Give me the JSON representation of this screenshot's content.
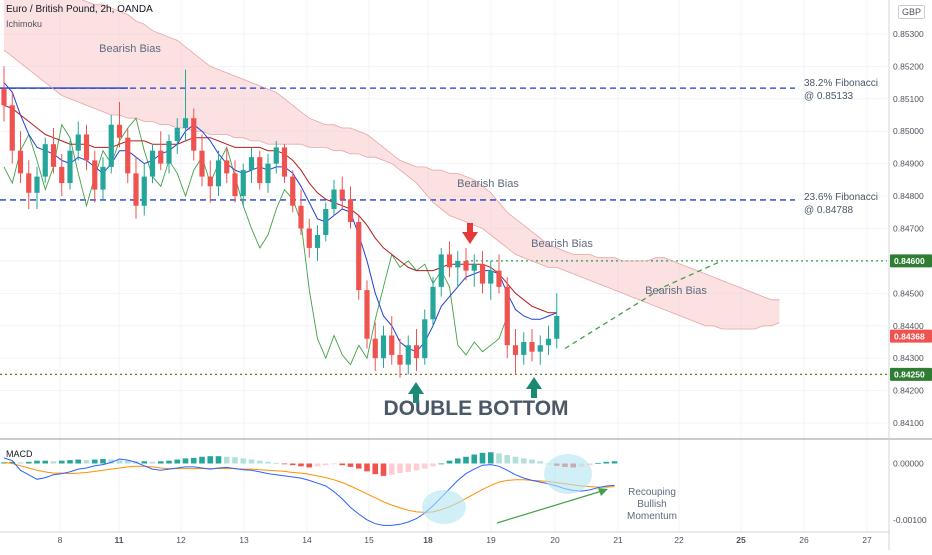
{
  "header": {
    "symbol_title": "Euro / British Pound, 2h, OANDA",
    "indicator_name": "Ichimoku"
  },
  "currency_label": "GBP",
  "chart_data": [
    {
      "type": "candlestick",
      "title": "Euro / British Pound, 2h, OANDA",
      "ylim": [
        0.8406,
        0.8538
      ],
      "y_ticks": [
        "0.85300",
        "0.85200",
        "0.85100",
        "0.85000",
        "0.84900",
        "0.84800",
        "0.84700",
        "0.84600",
        "0.84500",
        "0.84400",
        "0.84300",
        "0.84200",
        "0.84100"
      ],
      "x_ticks": [
        "8",
        "11",
        "12",
        "13",
        "14",
        "15",
        "18",
        "19",
        "20",
        "21",
        "22",
        "25",
        "26",
        "27"
      ],
      "price_tags": [
        {
          "label": "0.84600",
          "value": 0.846,
          "color": "#2e7d32"
        },
        {
          "label": "0.84368",
          "value": 0.84368,
          "color": "#ef5350"
        },
        {
          "label": "0.84250",
          "value": 0.8425,
          "color": "#2e7d32"
        }
      ],
      "levels": [
        {
          "name": "38.2% Fibonacci",
          "value_label": "@ 0.85133",
          "value": 0.85133,
          "style": "dashed",
          "color": "#1e3fc7"
        },
        {
          "name": "23.6% Fibonacci",
          "value_label": "@ 0.84788",
          "value": 0.84788,
          "style": "dashed",
          "color": "#1e3fc7"
        },
        {
          "name": "",
          "value_label": "",
          "value": 0.846,
          "style": "dotted",
          "color": "#2e9e3e"
        },
        {
          "name": "",
          "value_label": "",
          "value": 0.8425,
          "style": "dotted",
          "color": "#6f7c1a"
        }
      ],
      "annotations": [
        "Bearish Bias",
        "Bearish Bias",
        "Bearish Bias",
        "Bearish Bias",
        "DOUBLE BOTTOM"
      ],
      "candles": [
        [
          0.8513,
          0.852,
          0.8503,
          0.8508
        ],
        [
          0.8508,
          0.8512,
          0.849,
          0.8494
        ],
        [
          0.8494,
          0.85,
          0.8484,
          0.8487
        ],
        [
          0.8487,
          0.8491,
          0.8476,
          0.8481
        ],
        [
          0.8481,
          0.8489,
          0.8476,
          0.8486
        ],
        [
          0.8486,
          0.8498,
          0.8484,
          0.8496
        ],
        [
          0.8496,
          0.8501,
          0.8487,
          0.8489
        ],
        [
          0.8489,
          0.8493,
          0.848,
          0.8484
        ],
        [
          0.8484,
          0.8497,
          0.8482,
          0.8494
        ],
        [
          0.8494,
          0.8503,
          0.8491,
          0.8499
        ],
        [
          0.8499,
          0.8502,
          0.8488,
          0.8491
        ],
        [
          0.8491,
          0.8494,
          0.8478,
          0.8482
        ],
        [
          0.8482,
          0.8492,
          0.8479,
          0.8489
        ],
        [
          0.8489,
          0.8505,
          0.8487,
          0.8502
        ],
        [
          0.8502,
          0.8509,
          0.8495,
          0.8498
        ],
        [
          0.8498,
          0.8501,
          0.8484,
          0.8487
        ],
        [
          0.8487,
          0.8492,
          0.8473,
          0.8477
        ],
        [
          0.8477,
          0.849,
          0.8474,
          0.8486
        ],
        [
          0.8486,
          0.8496,
          0.8484,
          0.8494
        ],
        [
          0.8494,
          0.85,
          0.8488,
          0.849
        ],
        [
          0.849,
          0.8499,
          0.8487,
          0.8497
        ],
        [
          0.8497,
          0.8504,
          0.8493,
          0.8501
        ],
        [
          0.8501,
          0.8519,
          0.8497,
          0.8504
        ],
        [
          0.8504,
          0.8507,
          0.8491,
          0.8494
        ],
        [
          0.8494,
          0.8499,
          0.8483,
          0.8486
        ],
        [
          0.8486,
          0.8491,
          0.8478,
          0.8483
        ],
        [
          0.8483,
          0.8494,
          0.848,
          0.8491
        ],
        [
          0.8491,
          0.8495,
          0.8484,
          0.8487
        ],
        [
          0.8487,
          0.8491,
          0.8478,
          0.848
        ],
        [
          0.848,
          0.849,
          0.8477,
          0.8488
        ],
        [
          0.8488,
          0.8495,
          0.8484,
          0.8492
        ],
        [
          0.8492,
          0.8494,
          0.8482,
          0.8484
        ],
        [
          0.8484,
          0.8493,
          0.8481,
          0.849
        ],
        [
          0.849,
          0.8497,
          0.8487,
          0.8495
        ],
        [
          0.8495,
          0.8496,
          0.8484,
          0.8486
        ],
        [
          0.8486,
          0.8488,
          0.8475,
          0.8477
        ],
        [
          0.8477,
          0.8482,
          0.8468,
          0.847
        ],
        [
          0.847,
          0.8473,
          0.8461,
          0.8464
        ],
        [
          0.8464,
          0.8471,
          0.846,
          0.8468
        ],
        [
          0.8468,
          0.8478,
          0.8466,
          0.8476
        ],
        [
          0.8476,
          0.8485,
          0.8474,
          0.8482
        ],
        [
          0.8482,
          0.8486,
          0.8476,
          0.8479
        ],
        [
          0.8479,
          0.8483,
          0.847,
          0.8472
        ],
        [
          0.8472,
          0.8474,
          0.8448,
          0.8451
        ],
        [
          0.8451,
          0.8454,
          0.8433,
          0.8436
        ],
        [
          0.8436,
          0.8441,
          0.8426,
          0.843
        ],
        [
          0.843,
          0.844,
          0.8427,
          0.8437
        ],
        [
          0.8437,
          0.8443,
          0.8428,
          0.8431
        ],
        [
          0.8431,
          0.8436,
          0.8424,
          0.8428
        ],
        [
          0.8428,
          0.8437,
          0.8425,
          0.8434
        ],
        [
          0.8434,
          0.8439,
          0.8426,
          0.843
        ],
        [
          0.843,
          0.8445,
          0.8428,
          0.8442
        ],
        [
          0.8442,
          0.8455,
          0.844,
          0.8452
        ],
        [
          0.8452,
          0.8464,
          0.8449,
          0.8462
        ],
        [
          0.8462,
          0.8466,
          0.8455,
          0.8458
        ],
        [
          0.8458,
          0.8463,
          0.8452,
          0.846
        ],
        [
          0.846,
          0.8464,
          0.8454,
          0.8457
        ],
        [
          0.8457,
          0.8462,
          0.8452,
          0.8459
        ],
        [
          0.8459,
          0.8463,
          0.845,
          0.8453
        ],
        [
          0.8453,
          0.846,
          0.8448,
          0.8457
        ],
        [
          0.8457,
          0.8462,
          0.845,
          0.8452
        ],
        [
          0.8452,
          0.8455,
          0.843,
          0.8434
        ],
        [
          0.8434,
          0.8439,
          0.8425,
          0.8431
        ],
        [
          0.8431,
          0.8438,
          0.8428,
          0.8435
        ],
        [
          0.8435,
          0.8439,
          0.8429,
          0.8432
        ],
        [
          0.8432,
          0.8437,
          0.8428,
          0.8434
        ],
        [
          0.8434,
          0.844,
          0.8431,
          0.8436
        ],
        [
          0.8436,
          0.845,
          0.8433,
          0.8443
        ]
      ],
      "indicators": {
        "tenkan": [
          0.8515,
          0.8512,
          0.8505,
          0.8499,
          0.8495,
          0.8494,
          0.8493,
          0.8491,
          0.849,
          0.8492,
          0.8491,
          0.8489,
          0.8487,
          0.849,
          0.8494,
          0.8494,
          0.8492,
          0.849,
          0.8491,
          0.8493,
          0.8494,
          0.8496,
          0.85,
          0.8502,
          0.85,
          0.8497,
          0.8493,
          0.849,
          0.8488,
          0.8487,
          0.8488,
          0.8489,
          0.8488,
          0.8489,
          0.8489,
          0.8487,
          0.8483,
          0.8478,
          0.8473,
          0.8472,
          0.8474,
          0.8476,
          0.8475,
          0.8468,
          0.846,
          0.845,
          0.8443,
          0.844,
          0.8435,
          0.8433,
          0.8432,
          0.8435,
          0.844,
          0.8446,
          0.8449,
          0.8452,
          0.8455,
          0.8456,
          0.8457,
          0.8457,
          0.8456,
          0.845,
          0.8445,
          0.8443,
          0.8442,
          0.8442,
          0.8443,
          0.8444
        ],
        "kijun": [
          0.8508,
          0.8507,
          0.8505,
          0.8503,
          0.8501,
          0.8499,
          0.8498,
          0.8497,
          0.8496,
          0.8496,
          0.8496,
          0.8495,
          0.8495,
          0.8495,
          0.8496,
          0.8497,
          0.8497,
          0.8497,
          0.8496,
          0.8496,
          0.8496,
          0.8496,
          0.8497,
          0.8498,
          0.8498,
          0.8498,
          0.8497,
          0.8496,
          0.8495,
          0.8495,
          0.8495,
          0.8495,
          0.8494,
          0.8494,
          0.8493,
          0.8491,
          0.8488,
          0.8484,
          0.8481,
          0.8479,
          0.8478,
          0.8477,
          0.8476,
          0.8474,
          0.8471,
          0.8467,
          0.8464,
          0.8462,
          0.846,
          0.8458,
          0.8457,
          0.8457,
          0.8457,
          0.8458,
          0.8459,
          0.8459,
          0.8459,
          0.8459,
          0.8459,
          0.8458,
          0.8456,
          0.8453,
          0.845,
          0.8448,
          0.8446,
          0.8445,
          0.8444,
          0.8444
        ],
        "chikou": [
          0.8489,
          0.8484,
          0.8494,
          0.8499,
          0.8491,
          0.8482,
          0.8489,
          0.8502,
          0.8498,
          0.8487,
          0.8477,
          0.8486,
          0.8494,
          0.849,
          0.8497,
          0.8501,
          0.8504,
          0.8494,
          0.8486,
          0.8483,
          0.8491,
          0.8487,
          0.848,
          0.8488,
          0.8492,
          0.8484,
          0.849,
          0.8495,
          0.8486,
          0.8477,
          0.847,
          0.8464,
          0.8468,
          0.8476,
          0.8482,
          0.8479,
          0.8472,
          0.8451,
          0.8436,
          0.843,
          0.8437,
          0.8431,
          0.8428,
          0.8434,
          0.843,
          0.8442,
          0.8452,
          0.8462,
          0.8458,
          0.846,
          0.8457,
          0.8459,
          0.8453,
          0.8457,
          0.8452,
          0.8434,
          0.8431,
          0.8435,
          0.8432,
          0.8434,
          0.8436,
          0.8443
        ],
        "cloud_top": [
          0.8545,
          0.8545,
          0.8545,
          0.8544,
          0.8544,
          0.8543,
          0.8543,
          0.8542,
          0.8542,
          0.8541,
          0.854,
          0.8539,
          0.8539,
          0.8538,
          0.8537,
          0.8536,
          0.8534,
          0.8533,
          0.8531,
          0.853,
          0.8529,
          0.8528,
          0.8526,
          0.8524,
          0.8522,
          0.852,
          0.8519,
          0.8518,
          0.8517,
          0.8516,
          0.8515,
          0.8514,
          0.8513,
          0.8512,
          0.851,
          0.8508,
          0.8506,
          0.8504,
          0.8503,
          0.8502,
          0.8502,
          0.8501,
          0.8501,
          0.85,
          0.8499,
          0.8497,
          0.8495,
          0.8493,
          0.8491,
          0.849,
          0.8489,
          0.8489,
          0.8488,
          0.8488,
          0.8487,
          0.8487,
          0.8486,
          0.8485,
          0.8483,
          0.8481,
          0.8478,
          0.8475,
          0.8473,
          0.8471,
          0.8469,
          0.8467,
          0.8465,
          0.8464,
          0.8463,
          0.8462,
          0.8462,
          0.8462,
          0.8461,
          0.8461,
          0.8461,
          0.846,
          0.846,
          0.846,
          0.846,
          0.8461,
          0.8461,
          0.846,
          0.8459,
          0.8458,
          0.8457,
          0.8456,
          0.8455,
          0.8454,
          0.8453,
          0.8452,
          0.8451,
          0.845,
          0.8449,
          0.8448,
          0.8448
        ],
        "cloud_bottom": [
          0.8525,
          0.8523,
          0.8521,
          0.8519,
          0.8517,
          0.8515,
          0.8513,
          0.8511,
          0.851,
          0.8509,
          0.8508,
          0.8507,
          0.8506,
          0.8505,
          0.8505,
          0.8504,
          0.8504,
          0.8503,
          0.8503,
          0.8502,
          0.8502,
          0.8501,
          0.8501,
          0.85,
          0.85,
          0.8499,
          0.8499,
          0.8499,
          0.8498,
          0.8498,
          0.8497,
          0.8497,
          0.8496,
          0.8496,
          0.8496,
          0.8496,
          0.8496,
          0.8495,
          0.8495,
          0.8495,
          0.8494,
          0.8494,
          0.8493,
          0.8493,
          0.8492,
          0.8492,
          0.8491,
          0.849,
          0.8488,
          0.8486,
          0.8484,
          0.8481,
          0.8478,
          0.8476,
          0.8474,
          0.8473,
          0.8472,
          0.8471,
          0.847,
          0.8468,
          0.8466,
          0.8464,
          0.8462,
          0.8461,
          0.846,
          0.8459,
          0.8458,
          0.8458,
          0.8457,
          0.8456,
          0.8455,
          0.8454,
          0.8453,
          0.8452,
          0.8451,
          0.845,
          0.8449,
          0.8448,
          0.8447,
          0.8446,
          0.8445,
          0.8444,
          0.8443,
          0.8442,
          0.8441,
          0.844,
          0.844,
          0.8439,
          0.8439,
          0.8439,
          0.8439,
          0.8439,
          0.844,
          0.844,
          0.8441
        ]
      },
      "projection": [
        [
          68,
          0.8433
        ],
        [
          80,
          0.8452
        ],
        [
          87,
          0.846
        ]
      ]
    },
    {
      "type": "macd",
      "title": "MACD",
      "ylim": [
        -0.0012,
        0.0004
      ],
      "y_ticks": [
        "0.00000",
        "-0.00100"
      ],
      "y_tick_values": [
        0.0,
        -0.001
      ],
      "histogram": [
        2e-05,
        3e-05,
        2e-05,
        3e-05,
        5e-05,
        5e-05,
        4e-05,
        5e-05,
        6e-05,
        7e-05,
        6e-05,
        7e-05,
        8e-05,
        7e-05,
        6e-05,
        5e-05,
        4e-05,
        4e-05,
        3e-05,
        4e-05,
        5e-05,
        7e-05,
        9e-05,
        0.0001,
        0.00012,
        0.00013,
        0.00013,
        0.00012,
        0.00011,
        9e-05,
        7e-05,
        5e-05,
        3e-05,
        1e-05,
        -1e-05,
        -3e-05,
        -5e-05,
        -7e-05,
        -5e-05,
        -3e-05,
        -1e-05,
        -3e-05,
        -6e-05,
        -9e-05,
        -0.00014,
        -0.00019,
        -0.00022,
        -0.0002,
        -0.00017,
        -0.00015,
        -0.00012,
        -9e-05,
        -5e-05,
        0.0,
        5e-05,
        9e-05,
        0.00012,
        0.00016,
        0.00019,
        0.0002,
        0.00018,
        0.00015,
        0.00012,
        9e-05,
        7e-05,
        4e-05,
        0.0,
        -4e-05,
        -6e-05,
        -7e-05,
        -6e-05,
        -3e-05,
        1e-05,
        3e-05,
        4e-05
      ],
      "macd": [
        0.0001,
        5e-05,
        -0.00012,
        -0.0002,
        -0.00028,
        -0.00025,
        -0.0002,
        -0.00018,
        -0.00015,
        -0.0001,
        -8e-05,
        -4e-05,
        -2e-05,
        2e-05,
        8e-05,
        6e-05,
        2e-05,
        -4e-05,
        -0.0001,
        -0.00012,
        -0.0001,
        -8e-05,
        -6e-05,
        -6e-05,
        -8e-05,
        -0.0001,
        -8e-05,
        -7e-05,
        -9e-05,
        -0.00011,
        -0.00012,
        -0.00015,
        -0.00018,
        -0.0002,
        -0.00022,
        -0.00024,
        -0.00026,
        -0.0003,
        -0.00035,
        -0.0004,
        -0.0005,
        -0.00063,
        -0.00078,
        -0.0009,
        -0.001,
        -0.00107,
        -0.0011,
        -0.0011,
        -0.00108,
        -0.00104,
        -0.00098,
        -0.00088,
        -0.00075,
        -0.0006,
        -0.00045,
        -0.0003,
        -0.00018,
        -0.0001,
        -3e-05,
        -2e-05,
        -5e-05,
        -0.00012,
        -0.0002,
        -0.00026,
        -0.0003,
        -0.00033,
        -0.00036,
        -0.0004,
        -0.00045,
        -0.00048,
        -0.00049,
        -0.00047,
        -0.00043,
        -0.0004,
        -0.00039
      ],
      "signal": [
        2e-05,
        0.0,
        -4e-05,
        -8e-05,
        -0.00012,
        -0.00015,
        -0.00017,
        -0.00017,
        -0.00018,
        -0.00017,
        -0.00016,
        -0.00014,
        -0.00012,
        -0.0001,
        -8e-05,
        -6e-05,
        -5e-05,
        -5e-05,
        -6e-05,
        -8e-05,
        -9e-05,
        -9e-05,
        -9e-05,
        -9e-05,
        -9e-05,
        -9e-05,
        -9e-05,
        -9e-05,
        -9e-05,
        -0.0001,
        -0.0001,
        -0.00011,
        -0.00012,
        -0.00013,
        -0.00014,
        -0.00016,
        -0.00017,
        -0.00019,
        -0.00022,
        -0.00025,
        -0.00029,
        -0.00034,
        -0.0004,
        -0.00047,
        -0.00054,
        -0.00061,
        -0.00068,
        -0.00074,
        -0.00079,
        -0.00083,
        -0.00086,
        -0.00087,
        -0.00086,
        -0.00082,
        -0.00077,
        -0.0007,
        -0.00062,
        -0.00054,
        -0.00046,
        -0.00039,
        -0.00033,
        -0.0003,
        -0.00029,
        -0.00029,
        -0.0003,
        -0.00031,
        -0.00032,
        -0.00034,
        -0.00036,
        -0.00038,
        -0.0004,
        -0.00041,
        -0.00042,
        -0.00042,
        -0.00041
      ],
      "annotations": [
        "Recouping",
        "Bullish",
        "Momentum"
      ]
    }
  ]
}
